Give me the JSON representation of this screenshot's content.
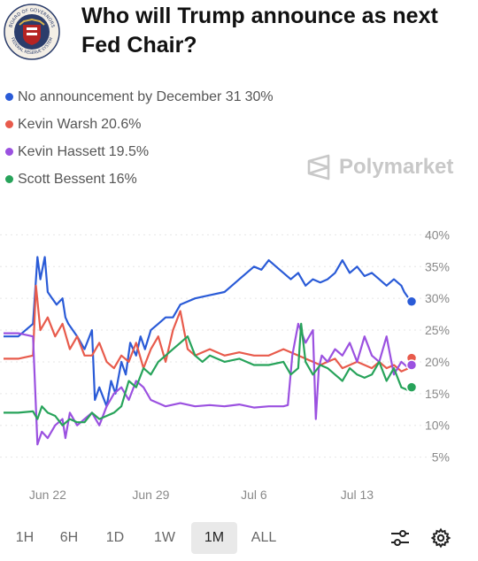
{
  "header": {
    "title": "Who will Trump announce as next Fed Chair?"
  },
  "logo": {
    "icon": "federal-reserve-seal-icon",
    "text_top": "BOARD OF GOVERNORS",
    "text_bottom": "FEDERAL RESERVE SYSTEM"
  },
  "brand": {
    "name": "Polymarket",
    "icon": "polymarket-logo-icon"
  },
  "legend": [
    {
      "label": "No announcement by December 31",
      "value": "30%",
      "color": "#2a5bd7"
    },
    {
      "label": "Kevin Warsh",
      "value": "20.6%",
      "color": "#e85b4c"
    },
    {
      "label": "Kevin Hassett",
      "value": "19.5%",
      "color": "#9b51e0"
    },
    {
      "label": "Scott Bessent",
      "value": "16%",
      "color": "#27a35a"
    }
  ],
  "chart_data": {
    "type": "line",
    "ylim": [
      3,
      42
    ],
    "yticks": [
      5,
      10,
      15,
      20,
      25,
      30,
      35,
      40
    ],
    "ytick_labels": [
      "5%",
      "10%",
      "15%",
      "20%",
      "25%",
      "30%",
      "35%",
      "40%"
    ],
    "xlim": [
      19,
      47
    ],
    "xticks": [
      22,
      29,
      36,
      43
    ],
    "xtick_labels": [
      "Jun 22",
      "Jun 29",
      "Jul 6",
      "Jul 13"
    ],
    "grid": true,
    "series": [
      {
        "name": "No announcement by December 31",
        "color": "#2a5bd7",
        "x": [
          19,
          20,
          21,
          21.3,
          21.5,
          21.8,
          22,
          22.3,
          22.6,
          23,
          23.2,
          23.4,
          24,
          24.5,
          25,
          25.2,
          25.5,
          26,
          26.3,
          26.6,
          27,
          27.3,
          27.6,
          28,
          28.3,
          28.6,
          29,
          29.5,
          30,
          30.5,
          31,
          31.5,
          32,
          33,
          34,
          34.5,
          35,
          35.5,
          36,
          36.5,
          37,
          37.5,
          38,
          38.5,
          39,
          39.5,
          40,
          40.5,
          41,
          41.5,
          42,
          42.5,
          43,
          43.5,
          44,
          44.5,
          45,
          45.5,
          46,
          46.2,
          46.5,
          46.7
        ],
        "y": [
          24,
          24,
          26,
          36.5,
          33,
          36.5,
          31,
          30,
          29,
          30,
          27,
          26,
          24,
          22,
          25,
          14,
          16,
          13,
          17,
          15,
          20,
          18,
          23,
          21,
          24,
          22,
          25,
          26,
          27,
          27,
          29,
          29.5,
          30,
          30.5,
          31,
          32,
          33,
          34,
          35,
          34.5,
          36,
          35,
          34,
          33,
          34,
          32,
          33,
          32.5,
          33,
          34,
          36,
          34,
          35,
          33.5,
          34,
          33,
          32,
          33,
          32,
          31,
          30,
          29.5
        ]
      },
      {
        "name": "Kevin Warsh",
        "color": "#e85b4c",
        "x": [
          19,
          20,
          21,
          21.2,
          21.5,
          22,
          22.5,
          23,
          23.5,
          24,
          24.5,
          25,
          25.5,
          26,
          26.5,
          27,
          27.5,
          28,
          28.5,
          29,
          29.5,
          30,
          30.5,
          31,
          31.5,
          32,
          33,
          34,
          35,
          36,
          37,
          38,
          39,
          40,
          40.5,
          41,
          41.5,
          42,
          42.5,
          43,
          43.5,
          44,
          44.5,
          45,
          45.5,
          46,
          46.5,
          46.7
        ],
        "y": [
          20.5,
          20.5,
          21,
          32,
          25,
          27,
          24,
          26,
          22,
          24,
          21,
          21,
          23,
          20,
          19,
          21,
          20,
          23,
          19,
          22,
          24,
          20,
          25,
          28,
          22,
          21,
          22,
          21,
          21.5,
          21,
          21,
          22,
          21,
          20,
          19.5,
          20,
          20.5,
          19,
          19.5,
          20,
          19.5,
          19,
          20,
          19,
          19.5,
          18.5,
          19,
          20.6
        ]
      },
      {
        "name": "Kevin Hassett",
        "color": "#9b51e0",
        "x": [
          19,
          20,
          21,
          21.3,
          21.6,
          22,
          22.5,
          23,
          23.2,
          23.5,
          24,
          24.5,
          25,
          25.5,
          26,
          26.5,
          27,
          27.5,
          28,
          28.5,
          29,
          29.5,
          30,
          31,
          32,
          33,
          34,
          35,
          36,
          37,
          38,
          38.3,
          38.6,
          39,
          39.5,
          40,
          40.2,
          40.4,
          40.6,
          41,
          41.5,
          42,
          42.5,
          43,
          43.5,
          44,
          44.5,
          45,
          45.5,
          46,
          46.5,
          46.7
        ],
        "y": [
          24.5,
          24.5,
          24,
          7,
          9,
          8,
          10,
          11,
          8,
          12,
          10,
          11,
          12,
          10,
          13,
          15,
          16,
          14,
          17,
          16,
          14,
          13.5,
          13,
          13.5,
          13,
          13.2,
          13,
          13.3,
          12.8,
          13,
          13,
          13.2,
          21,
          26,
          23,
          25,
          11,
          19,
          21,
          20,
          22,
          21,
          23,
          20,
          24,
          21,
          20,
          24,
          18,
          20,
          19,
          19.5
        ]
      },
      {
        "name": "Scott Bessent",
        "color": "#27a35a",
        "x": [
          19,
          20,
          21,
          21.3,
          21.6,
          22,
          22.5,
          23,
          23.5,
          24,
          24.5,
          25,
          25.5,
          26,
          26.5,
          27,
          27.5,
          28,
          28.5,
          29,
          29.5,
          30,
          30.5,
          31,
          31.5,
          32,
          32.5,
          33,
          34,
          35,
          36,
          37,
          38,
          38.5,
          39,
          39.2,
          39.5,
          40,
          40.5,
          41,
          41.5,
          42,
          42.5,
          43,
          43.5,
          44,
          44.5,
          45,
          45.5,
          46,
          46.5,
          46.7
        ],
        "y": [
          12,
          12,
          12.2,
          11,
          13,
          12,
          11.5,
          10,
          11,
          10.5,
          10.5,
          12,
          11,
          11.5,
          12,
          13,
          17,
          16,
          19,
          18,
          20,
          21,
          22,
          23,
          24,
          21,
          20,
          21,
          20,
          20.5,
          19.5,
          19.5,
          20,
          18,
          19,
          26,
          20,
          18,
          19.5,
          19,
          18,
          17,
          19,
          18,
          17.5,
          18,
          20,
          17,
          19,
          16,
          15.5,
          16
        ]
      }
    ]
  },
  "ranges": {
    "items": [
      "1H",
      "6H",
      "1D",
      "1W",
      "1M",
      "ALL"
    ],
    "active": "1M"
  },
  "tools": {
    "filter_icon": "sliders-icon",
    "settings_icon": "gear-icon"
  }
}
